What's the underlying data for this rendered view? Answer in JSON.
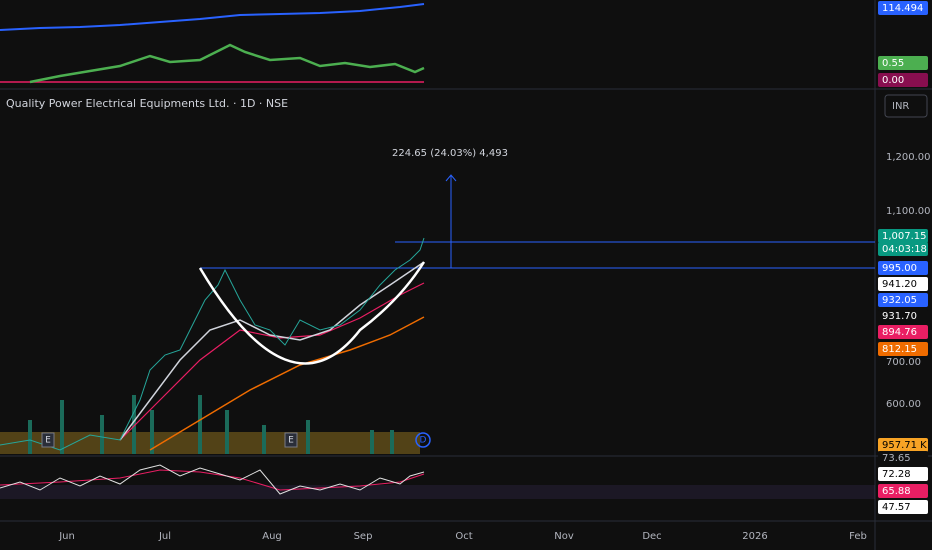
{
  "header": {
    "title": "Quality Power Electrical Equipments Ltd. · 1D · NSE",
    "currency": "INR"
  },
  "indicator_panel": {
    "labels": [
      "114.494",
      "0.55",
      "0.00"
    ]
  },
  "annotation": "224.65 (24.03%) 4,493",
  "markers": [
    "E",
    "E",
    "D"
  ],
  "price_axis": {
    "ticks": [
      "1,200.00",
      "1,100.00",
      "700.00",
      "600.00"
    ],
    "badges": [
      "1,007.15",
      "04:03:18",
      "995.00",
      "941.20",
      "932.05",
      "931.70",
      "894.76",
      "812.15",
      "957.71 K"
    ]
  },
  "rsi_panel": {
    "labels": [
      "73.65",
      "72.28",
      "65.88",
      "47.57"
    ]
  },
  "time_axis": [
    "Jun",
    "Jul",
    "Aug",
    "Sep",
    "Oct",
    "Nov",
    "Dec",
    "2026",
    "Feb"
  ]
}
